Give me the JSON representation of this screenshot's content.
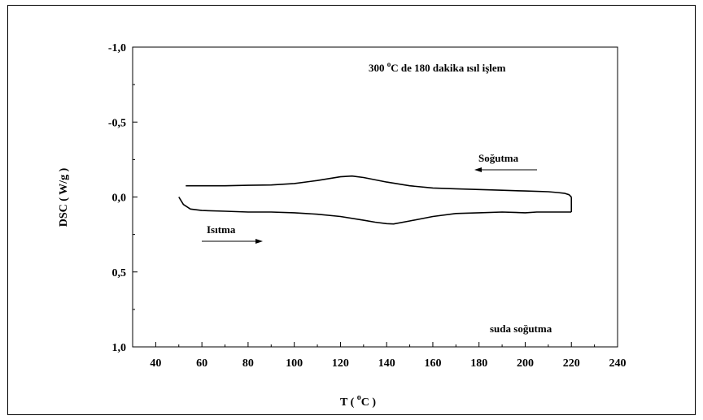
{
  "chart_data": {
    "type": "line",
    "xlabel": "T ( ",
    "xlabel_sup": "o",
    "xlabel_unit": "C )",
    "ylabel": "DSC ( W/g )",
    "xlim": [
      30,
      240
    ],
    "ylim": [
      -1.0,
      1.0
    ],
    "y_axis_inverted": true,
    "x_ticks": [
      40,
      60,
      80,
      100,
      120,
      140,
      160,
      180,
      200,
      220,
      240
    ],
    "x_tick_labels": [
      "40",
      "60",
      "80",
      "100",
      "120",
      "140",
      "160",
      "180",
      "200",
      "220",
      "240"
    ],
    "y_ticks": [
      -1.0,
      -0.5,
      0.0,
      0.5,
      1.0
    ],
    "y_tick_labels": [
      "-1,0",
      "-0,5",
      "0,0",
      "0,5",
      "1,0"
    ],
    "grid": false,
    "annotations": {
      "top": "300 ",
      "top_sup": "o",
      "top_rest": "C de 180 dakika ısıl işlem",
      "cooling": "Soğutma",
      "heating": "Isıtma",
      "bottom": "suda soğutma"
    },
    "series": [
      {
        "x": [
          50,
          52,
          55,
          60,
          70,
          80,
          90,
          100,
          110,
          120,
          130,
          135,
          140,
          143,
          150,
          160,
          170,
          180,
          190,
          200,
          205,
          210,
          215,
          220
        ],
        "y": [
          0.0,
          0.05,
          0.08,
          0.09,
          0.095,
          0.1,
          0.1,
          0.105,
          0.115,
          0.13,
          0.155,
          0.168,
          0.178,
          0.18,
          0.16,
          0.13,
          0.11,
          0.105,
          0.1,
          0.105,
          0.1,
          0.1,
          0.1,
          0.1
        ]
      },
      {
        "x": [
          220,
          219,
          217,
          214,
          210,
          200,
          190,
          180,
          170,
          160,
          150,
          140,
          130,
          125,
          120,
          110,
          100,
          90,
          80,
          70,
          60,
          53
        ],
        "y": [
          0.0,
          -0.015,
          -0.025,
          -0.03,
          -0.035,
          -0.04,
          -0.045,
          -0.05,
          -0.055,
          -0.06,
          -0.075,
          -0.1,
          -0.13,
          -0.14,
          -0.135,
          -0.11,
          -0.09,
          -0.08,
          -0.078,
          -0.075,
          -0.075,
          -0.075
        ]
      }
    ]
  }
}
